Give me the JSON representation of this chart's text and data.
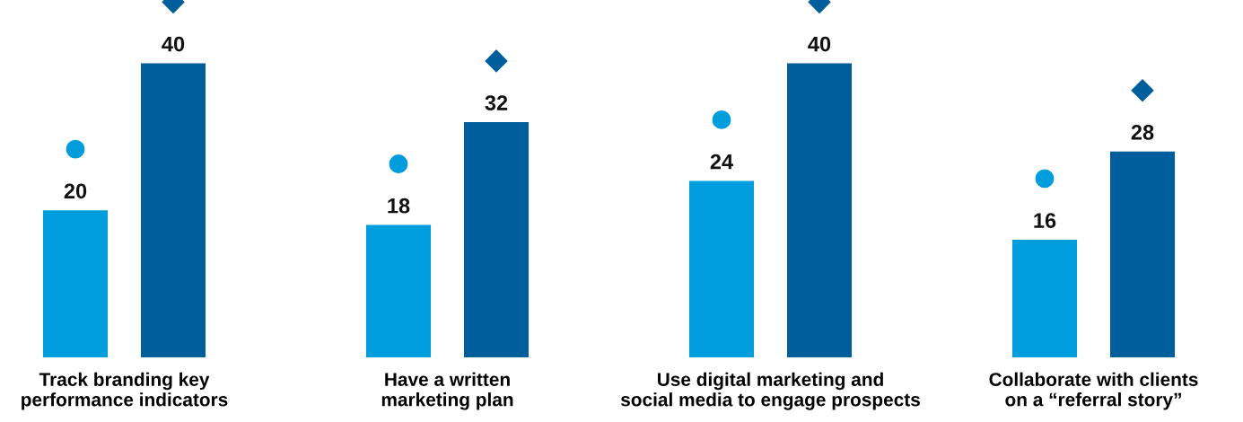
{
  "chart_data": {
    "type": "bar",
    "categories": [
      "Track branding key\nperformance indicators",
      "Have a written\nmarketing plan",
      "Use digital marketing and\nsocial media to engage prospects",
      "Collaborate with clients\non a “referral story”"
    ],
    "series": [
      {
        "color": "#009ddc",
        "values": [
          20,
          18,
          24,
          16
        ],
        "marker": "circle"
      },
      {
        "color": "#005e9c",
        "values": [
          40,
          32,
          40,
          28
        ],
        "marker": "diamond"
      }
    ],
    "data_labels": true,
    "grid": false,
    "legend": false
  }
}
